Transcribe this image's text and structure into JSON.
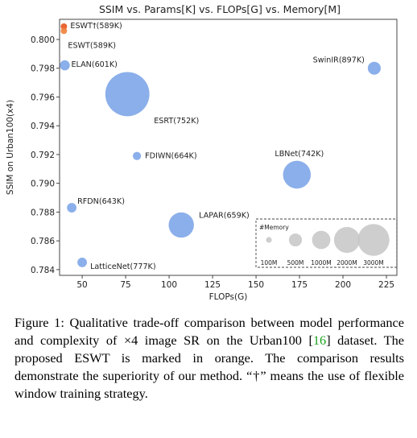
{
  "chart_data": {
    "type": "scatter",
    "title": "SSIM vs. Params[K] vs. FLOPs[G] vs. Memory[M]",
    "xlabel": "FLOPs(G)",
    "ylabel": "SSIM on Urban100(x4)",
    "xlim": [
      37,
      231
    ],
    "ylim": [
      0.7836,
      0.8014
    ],
    "xticks": [
      50,
      75,
      100,
      125,
      150,
      175,
      200,
      225
    ],
    "yticks": [
      0.784,
      0.786,
      0.788,
      0.79,
      0.792,
      0.794,
      0.796,
      0.798,
      0.8
    ],
    "colors": {
      "baseline": "#7ea6e8",
      "proposed": "#ef7f3a",
      "proposed_dagger": "#e8541c"
    },
    "points": [
      {
        "label": "ESWT†(589K)",
        "x": 39.5,
        "y": 0.8009,
        "memory_mb": 120,
        "highlight": true,
        "color": "#e8541c"
      },
      {
        "label": "ESWT(589K)",
        "x": 39.5,
        "y": 0.8006,
        "memory_mb": 120,
        "highlight": true,
        "color": "#ef7f3a"
      },
      {
        "label": "ELAN(601K)",
        "x": 40,
        "y": 0.7982,
        "memory_mb": 300,
        "highlight": false
      },
      {
        "label": "SwinIR(897K)",
        "x": 218,
        "y": 0.798,
        "memory_mb": 500,
        "highlight": false
      },
      {
        "label": "ESRT(752K)",
        "x": 76,
        "y": 0.7962,
        "memory_mb": 5800,
        "highlight": false
      },
      {
        "label": "FDIWN(664K)",
        "x": 81.5,
        "y": 0.7919,
        "memory_mb": 200,
        "highlight": false
      },
      {
        "label": "LBNet(742K)",
        "x": 173.5,
        "y": 0.7906,
        "memory_mb": 2300,
        "highlight": false
      },
      {
        "label": "RFDN(643K)",
        "x": 44,
        "y": 0.7883,
        "memory_mb": 270,
        "highlight": false
      },
      {
        "label": "LAPAR(659K)",
        "x": 107,
        "y": 0.7871,
        "memory_mb": 1900,
        "highlight": false
      },
      {
        "label": "LatticeNet(777K)",
        "x": 50,
        "y": 0.7845,
        "memory_mb": 270,
        "highlight": false
      }
    ],
    "size_legend": {
      "title": "#Memory",
      "entries": [
        {
          "label": "100M",
          "memory_mb": 100
        },
        {
          "label": "500M",
          "memory_mb": 500
        },
        {
          "label": "1000M",
          "memory_mb": 1000
        },
        {
          "label": "2000M",
          "memory_mb": 2000
        },
        {
          "label": "3000M",
          "memory_mb": 3000
        }
      ]
    },
    "grid": false
  },
  "caption": {
    "part1": "Figure 1: Qualitative trade-off comparison between model performance and complexity of ×4 image SR on the Urban100 [",
    "ref": "16",
    "part2": "] dataset. The proposed ESWT is marked in orange. The comparison results demonstrate the superiority of our method. “†” means the use of flexible window training strategy."
  }
}
